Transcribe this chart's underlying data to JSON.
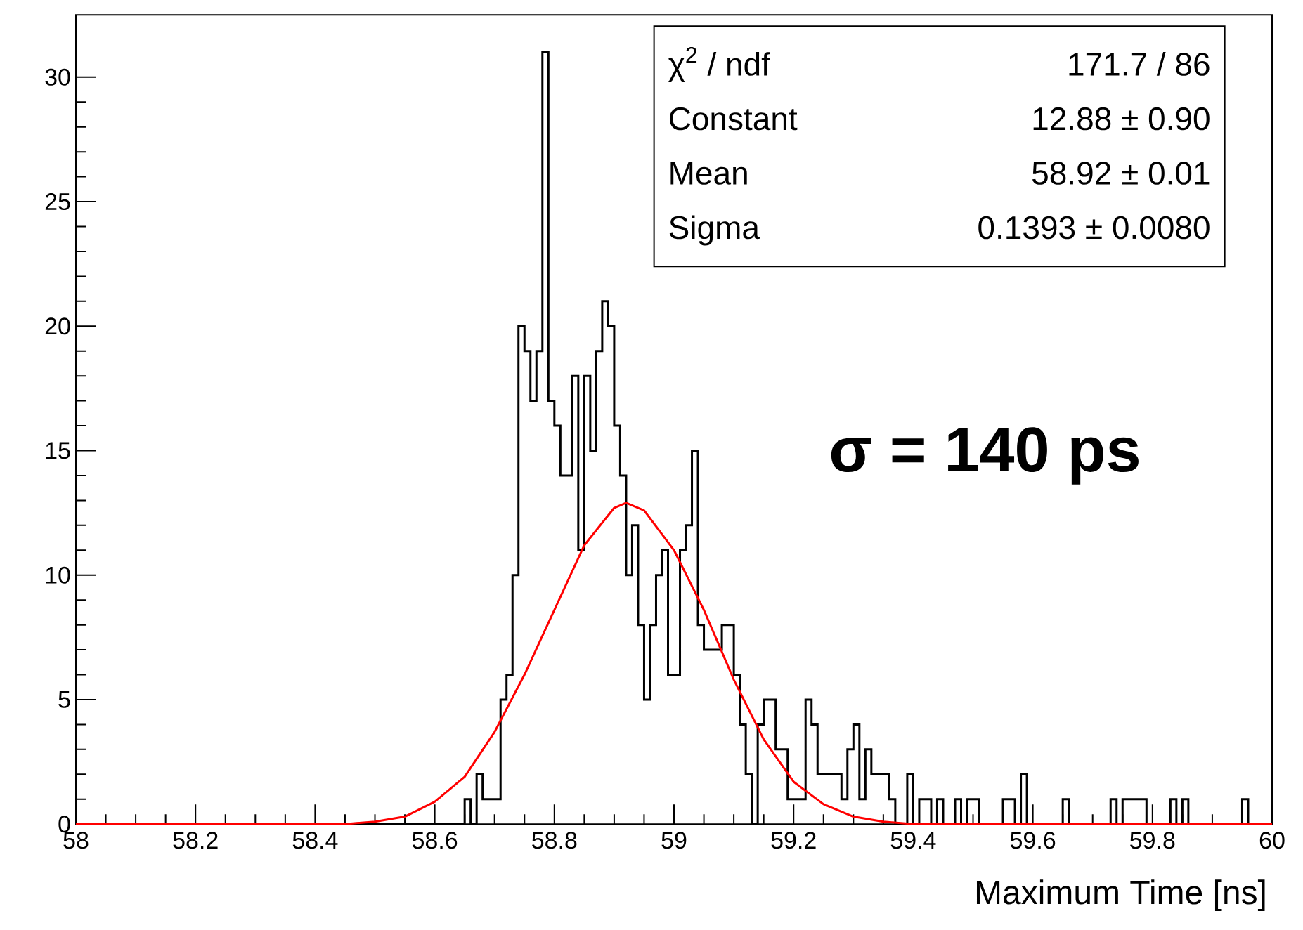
{
  "chart_data": {
    "type": "histogram",
    "xlabel": "Maximum Time [ns]",
    "color": "#000000",
    "bins": [
      58,
      58.01,
      58.02,
      58.03,
      58.04,
      58.05,
      58.06,
      58.07,
      58.08,
      58.09,
      58.1,
      58.11,
      58.12,
      58.13,
      58.14,
      58.15,
      58.16,
      58.17,
      58.18,
      58.19,
      58.2,
      58.21,
      58.22,
      58.23,
      58.24,
      58.25,
      58.26,
      58.27,
      58.28,
      58.29,
      58.3,
      58.31,
      58.32,
      58.33,
      58.34,
      58.35,
      58.36,
      58.37,
      58.38,
      58.39,
      58.4,
      58.41,
      58.42,
      58.43,
      58.44,
      58.45,
      58.46,
      58.47,
      58.48,
      58.49,
      58.5,
      58.51,
      58.52,
      58.53,
      58.54,
      58.55,
      58.56,
      58.57,
      58.58,
      58.59,
      58.6,
      58.61,
      58.62,
      58.63,
      58.64,
      58.65,
      58.66,
      58.67,
      58.68,
      58.69,
      58.7,
      58.71,
      58.72,
      58.73,
      58.74,
      58.75,
      58.76,
      58.77,
      58.78,
      58.79,
      58.8,
      58.81,
      58.82,
      58.83,
      58.84,
      58.85,
      58.86,
      58.87,
      58.88,
      58.89,
      58.9,
      58.91,
      58.92,
      58.93,
      58.94,
      58.95,
      58.96,
      58.97,
      58.98,
      58.99,
      59,
      59.01,
      59.02,
      59.03,
      59.04,
      59.05,
      59.06,
      59.07,
      59.08,
      59.09,
      59.1,
      59.11,
      59.12,
      59.13,
      59.14,
      59.15,
      59.16,
      59.17,
      59.18,
      59.19,
      59.2,
      59.21,
      59.22,
      59.23,
      59.24,
      59.25,
      59.26,
      59.27,
      59.28,
      59.29,
      59.3,
      59.31,
      59.32,
      59.33,
      59.34,
      59.35,
      59.36,
      59.37,
      59.38,
      59.39,
      59.4,
      59.41,
      59.42,
      59.43,
      59.44,
      59.45,
      59.46,
      59.47,
      59.48,
      59.49,
      59.5,
      59.51,
      59.52,
      59.53,
      59.54,
      59.55,
      59.56,
      59.57,
      59.58,
      59.59,
      59.6,
      59.61,
      59.62,
      59.63,
      59.64,
      59.65,
      59.66,
      59.67,
      59.68,
      59.69,
      59.7,
      59.71,
      59.72,
      59.73,
      59.74,
      59.75,
      59.76,
      59.77,
      59.78,
      59.79,
      59.8,
      59.81,
      59.82,
      59.83,
      59.84,
      59.85,
      59.86,
      59.87,
      59.88,
      59.89,
      59.9,
      59.91,
      59.92,
      59.93,
      59.94,
      59.95,
      59.96,
      59.97,
      59.98,
      59.99,
      60
    ],
    "values": [
      0,
      0,
      0,
      0,
      0,
      0,
      0,
      0,
      0,
      0,
      0,
      0,
      0,
      0,
      0,
      0,
      0,
      0,
      0,
      0,
      0,
      0,
      0,
      0,
      0,
      0,
      0,
      0,
      0,
      0,
      0,
      0,
      0,
      0,
      0,
      0,
      0,
      0,
      0,
      0,
      0,
      0,
      0,
      0,
      0,
      0,
      0,
      0,
      0,
      0,
      0,
      0,
      0,
      0,
      0,
      0,
      0,
      0,
      0,
      0,
      0,
      0,
      0,
      0,
      0,
      1,
      0,
      2,
      1,
      1,
      1,
      5,
      6,
      10,
      20,
      19,
      17,
      19,
      31,
      17,
      16,
      14,
      14,
      18,
      11,
      18,
      15,
      19,
      21,
      20,
      16,
      14,
      10,
      12,
      8,
      5,
      8,
      10,
      11,
      6,
      6,
      11,
      12,
      15,
      8,
      7,
      7,
      7,
      8,
      8,
      6,
      4,
      2,
      0,
      4,
      5,
      5,
      3,
      3,
      1,
      1,
      1,
      5,
      4,
      2,
      2,
      2,
      2,
      1,
      3,
      4,
      1,
      3,
      2,
      2,
      2,
      1,
      0,
      0,
      2,
      0,
      1,
      1,
      0,
      1,
      0,
      0,
      1,
      0,
      1,
      1,
      0,
      0,
      0,
      0,
      1,
      1,
      0,
      2,
      0,
      0,
      0,
      0,
      0,
      0,
      1,
      0,
      0,
      0,
      0,
      0,
      0,
      0,
      1,
      0,
      1,
      1,
      1,
      1,
      0,
      0,
      0,
      0,
      1,
      0,
      1,
      0,
      0,
      0,
      0,
      0,
      0,
      0,
      0,
      0,
      1,
      0,
      0,
      0,
      0
    ],
    "series": [
      {
        "type": "line",
        "color": "#ff0000",
        "x": [
          58,
          58.45,
          58.5,
          58.55,
          58.6,
          58.65,
          58.7,
          58.75,
          58.8,
          58.85,
          58.9,
          58.92,
          58.95,
          59,
          59.05,
          59.1,
          59.15,
          59.2,
          59.25,
          59.3,
          59.35,
          59.4,
          60
        ],
        "values": [
          0,
          0,
          0.1,
          0.3,
          0.9,
          1.9,
          3.7,
          6.0,
          8.6,
          11.2,
          12.7,
          12.9,
          12.6,
          11.0,
          8.6,
          5.8,
          3.4,
          1.7,
          0.8,
          0.3,
          0.1,
          0,
          0
        ]
      }
    ],
    "xlim": [
      58,
      60
    ],
    "ylim": [
      0,
      32.5
    ],
    "xticks": [
      58,
      58.2,
      58.4,
      58.6,
      58.8,
      59,
      59.2,
      59.4,
      59.6,
      59.8,
      60
    ],
    "yticks": [
      0,
      5,
      10,
      15,
      20,
      25,
      30
    ],
    "annotations": [
      "χ$^{2}$ / ndf",
      "171.7 / 86",
      "Constant",
      "12.88 ± 0.90",
      "Mean",
      "58.92 ± 0.01",
      "Sigma",
      "0.1393 ± 0.0080",
      "σ = 140 ps"
    ]
  }
}
